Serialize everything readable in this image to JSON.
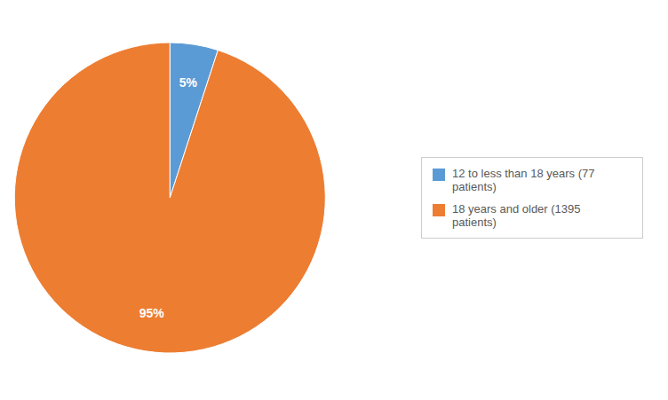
{
  "chart_data": {
    "type": "pie",
    "categories": [
      "12 to less than 18 years (77\npatients)",
      "18 years and older (1395\npatients)"
    ],
    "values": [
      5,
      95
    ],
    "value_labels": [
      "5%",
      "95%"
    ],
    "colors": [
      "#5B9BD5",
      "#ED7D31"
    ],
    "data_labels": true,
    "legend": "right"
  }
}
